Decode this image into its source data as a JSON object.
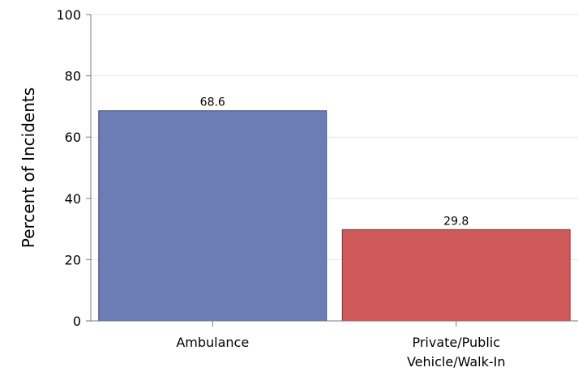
{
  "chart_data": {
    "type": "bar",
    "categories": [
      "Ambulance",
      "Private/Public Vehicle/Walk-In"
    ],
    "category_label_lines": [
      [
        "Ambulance"
      ],
      [
        "Private/Public",
        "Vehicle/Walk-In"
      ]
    ],
    "values": [
      68.6,
      29.8
    ],
    "data_labels": [
      "68.6",
      "29.8"
    ],
    "colors": [
      "#6b7db4",
      "#d05a5a"
    ],
    "bar_edge_colors": [
      "#3b4a86",
      "#8e3030"
    ],
    "title": "",
    "xlabel": "",
    "ylabel": "Percent of Incidents",
    "ylim": [
      0,
      100
    ],
    "yticks": [
      0,
      20,
      40,
      60,
      80,
      100
    ],
    "grid": "horizontal",
    "legend": "none"
  }
}
